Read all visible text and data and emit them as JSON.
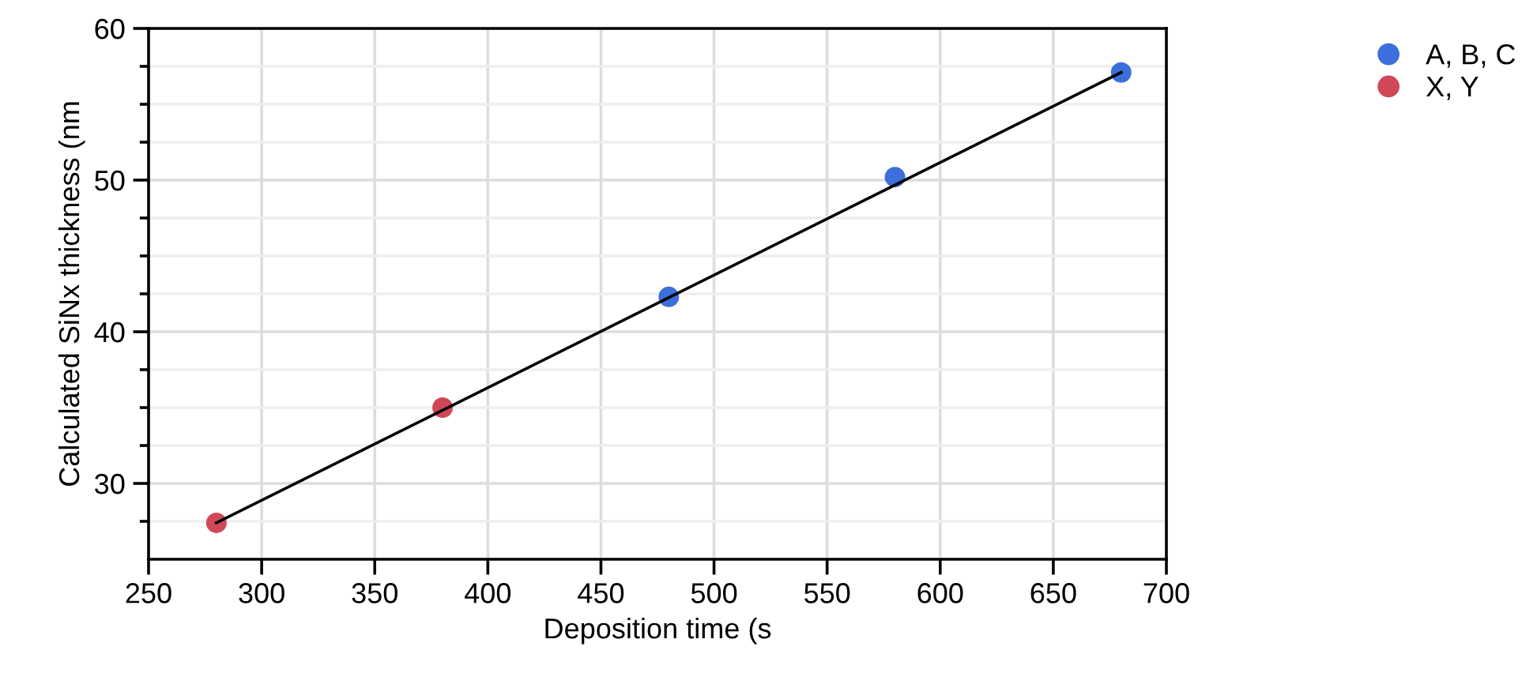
{
  "chart_data": {
    "type": "scatter",
    "xlabel": "Deposition time (s",
    "ylabel": "Calculated SiNx thickness (nm",
    "series": [
      {
        "type": "line",
        "color": "#000000",
        "x": [
          280,
          680
        ],
        "values": [
          27.4,
          57.1
        ],
        "marker": "none",
        "line_style": "solid"
      },
      {
        "name": "A, B, C",
        "color": "#3c6fdc",
        "x": [
          480,
          580,
          680
        ],
        "values": [
          42.3,
          50.2,
          57.1
        ],
        "marker": "circle"
      },
      {
        "name": "X, Y",
        "color": "#d04858",
        "x": [
          280,
          380
        ],
        "values": [
          27.4,
          35.0
        ],
        "marker": "circle"
      }
    ],
    "xlim": [
      250,
      700
    ],
    "xticks": [
      250,
      300,
      350,
      400,
      450,
      500,
      550,
      600,
      650,
      700
    ],
    "ylim": [
      25,
      60
    ],
    "yticks": [
      {
        "value": 27.5,
        "label": null
      },
      30,
      {
        "value": 32.5,
        "label": null
      },
      {
        "value": 35,
        "label": null
      },
      {
        "value": 37.5,
        "label": null
      },
      40,
      {
        "value": 42.5,
        "label": null
      },
      {
        "value": 45,
        "label": null
      },
      {
        "value": 47.5,
        "label": null
      },
      50,
      {
        "value": 52.5,
        "label": null
      },
      {
        "value": 55,
        "label": null
      },
      {
        "value": 57.5,
        "label": null
      },
      60
    ],
    "grid": true,
    "legend": "top right"
  }
}
